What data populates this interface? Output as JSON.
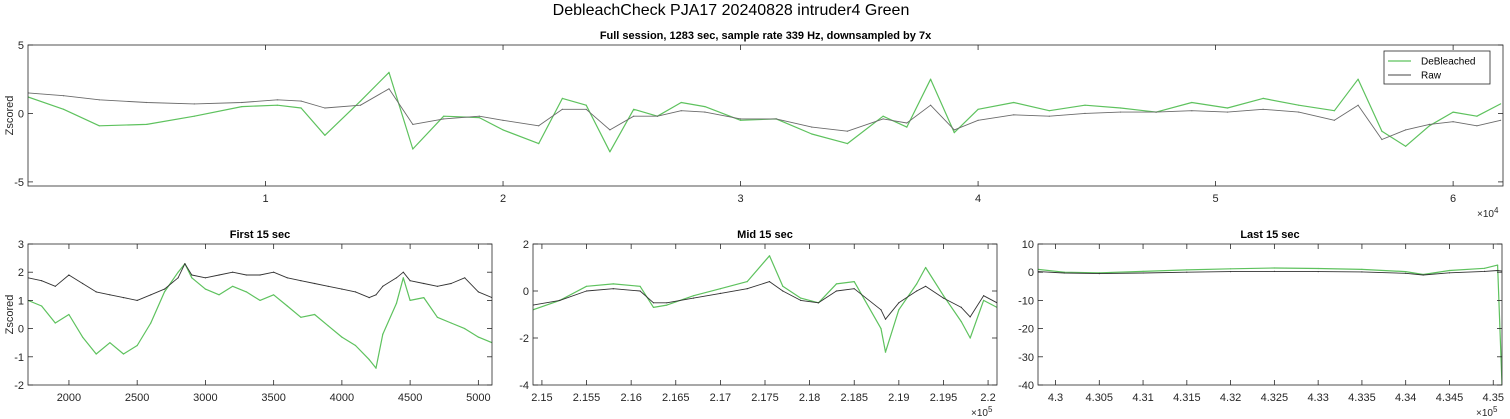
{
  "figure_title": "DebleachCheck PJA17 20240828  intruder4 Green",
  "chart_data": [
    {
      "type": "line",
      "title": "Full session, 1283 sec, sample rate 339 Hz, downsampled by 7x",
      "xlabel": "",
      "ylabel": "Zscored",
      "xlim": [
        0,
        62100
      ],
      "ylim": [
        -5.3,
        5
      ],
      "xticks": [
        10000,
        20000,
        30000,
        40000,
        50000,
        60000
      ],
      "xtick_labels": [
        "1",
        "2",
        "3",
        "4",
        "5",
        "6"
      ],
      "x_exponent": "4",
      "yticks": [
        -5,
        0,
        5
      ],
      "ytick_labels": [
        "-5",
        "0",
        "5"
      ],
      "legend": {
        "placement": "top-right",
        "entries": [
          "DeBleached",
          "Raw"
        ]
      },
      "series": [
        {
          "name": "DeBleached",
          "color": "#5ec25e",
          "x": [
            0,
            1500,
            3000,
            5000,
            7000,
            9000,
            10500,
            11500,
            12500,
            14000,
            15200,
            16200,
            17500,
            19000,
            20000,
            21500,
            22500,
            23500,
            24500,
            25500,
            26500,
            27500,
            28500,
            30000,
            31500,
            33000,
            34500,
            36000,
            37000,
            38000,
            39000,
            40000,
            41500,
            43000,
            44500,
            46000,
            47500,
            49000,
            50500,
            52000,
            53500,
            55000,
            56000,
            57000,
            58000,
            59000,
            60000,
            61000,
            62000
          ],
          "y": [
            1.2,
            0.3,
            -0.9,
            -0.8,
            -0.2,
            0.5,
            0.6,
            0.4,
            -1.6,
            0.9,
            3.0,
            -2.6,
            -0.2,
            -0.3,
            -1.2,
            -2.2,
            1.1,
            0.6,
            -2.8,
            0.3,
            -0.2,
            0.8,
            0.5,
            -0.5,
            -0.4,
            -1.5,
            -2.2,
            -0.2,
            -1.0,
            2.5,
            -1.4,
            0.3,
            0.8,
            0.2,
            0.6,
            0.4,
            0.1,
            0.8,
            0.4,
            1.1,
            0.6,
            0.2,
            2.5,
            -1.3,
            -2.4,
            -0.9,
            0.1,
            -0.2,
            0.7
          ]
        },
        {
          "name": "Raw",
          "color": "#6b6b6b",
          "x": [
            0,
            1500,
            3000,
            5000,
            7000,
            9000,
            10500,
            11500,
            12500,
            14000,
            15200,
            16200,
            17500,
            19000,
            20000,
            21500,
            22500,
            23500,
            24500,
            25500,
            26500,
            27500,
            28500,
            30000,
            31500,
            33000,
            34500,
            36000,
            37000,
            38000,
            39000,
            40000,
            41500,
            43000,
            44500,
            46000,
            47500,
            49000,
            50500,
            52000,
            53500,
            55000,
            56000,
            57000,
            58000,
            59000,
            60000,
            61000,
            62000
          ],
          "y": [
            1.5,
            1.3,
            1.0,
            0.8,
            0.7,
            0.8,
            1.0,
            0.9,
            0.4,
            0.6,
            1.8,
            -0.8,
            -0.4,
            -0.2,
            -0.5,
            -0.9,
            0.3,
            0.3,
            -1.2,
            -0.2,
            -0.2,
            0.2,
            0.1,
            -0.4,
            -0.4,
            -1.0,
            -1.3,
            -0.4,
            -0.7,
            0.6,
            -1.2,
            -0.5,
            -0.1,
            -0.2,
            0.0,
            0.1,
            0.1,
            0.2,
            0.1,
            0.3,
            0.1,
            -0.5,
            0.6,
            -1.9,
            -1.2,
            -0.8,
            -0.6,
            -0.9,
            -0.5
          ]
        }
      ]
    },
    {
      "type": "line",
      "title": "First 15 sec",
      "xlabel": "",
      "ylabel": "Zscored",
      "xlim": [
        1700,
        5100
      ],
      "ylim": [
        -2,
        3
      ],
      "xticks": [
        2000,
        2500,
        3000,
        3500,
        4000,
        4500,
        5000
      ],
      "xtick_labels": [
        "2000",
        "2500",
        "3000",
        "3500",
        "4000",
        "4500",
        "5000"
      ],
      "yticks": [
        -2,
        -1,
        0,
        1,
        2,
        3
      ],
      "ytick_labels": [
        "-2",
        "-1",
        "0",
        "1",
        "2",
        "3"
      ],
      "series": [
        {
          "name": "DeBleached",
          "color": "#5ec25e",
          "x": [
            1700,
            1800,
            1900,
            2000,
            2100,
            2200,
            2300,
            2400,
            2500,
            2600,
            2700,
            2800,
            2850,
            2900,
            3000,
            3100,
            3200,
            3300,
            3400,
            3500,
            3600,
            3700,
            3800,
            3900,
            4000,
            4100,
            4200,
            4250,
            4300,
            4400,
            4450,
            4500,
            4600,
            4700,
            4800,
            4900,
            5000,
            5100
          ],
          "y": [
            1.0,
            0.8,
            0.2,
            0.5,
            -0.3,
            -0.9,
            -0.5,
            -0.9,
            -0.6,
            0.2,
            1.3,
            2.0,
            2.3,
            1.8,
            1.4,
            1.2,
            1.5,
            1.3,
            1.0,
            1.2,
            0.8,
            0.4,
            0.5,
            0.1,
            -0.3,
            -0.6,
            -1.1,
            -1.4,
            -0.2,
            0.9,
            1.8,
            1.0,
            1.1,
            0.4,
            0.2,
            0.0,
            -0.3,
            -0.5
          ]
        },
        {
          "name": "Raw",
          "color": "#333333",
          "x": [
            1700,
            1800,
            1900,
            2000,
            2100,
            2200,
            2300,
            2400,
            2500,
            2600,
            2700,
            2800,
            2850,
            2900,
            3000,
            3100,
            3200,
            3300,
            3400,
            3500,
            3600,
            3700,
            3800,
            3900,
            4000,
            4100,
            4200,
            4250,
            4300,
            4400,
            4450,
            4500,
            4600,
            4700,
            4800,
            4900,
            5000,
            5100
          ],
          "y": [
            1.8,
            1.7,
            1.5,
            1.9,
            1.6,
            1.3,
            1.2,
            1.1,
            1.0,
            1.2,
            1.4,
            1.8,
            2.3,
            1.9,
            1.8,
            1.9,
            2.0,
            1.9,
            1.9,
            2.0,
            1.8,
            1.7,
            1.6,
            1.5,
            1.4,
            1.3,
            1.1,
            1.2,
            1.5,
            1.8,
            2.0,
            1.7,
            1.6,
            1.5,
            1.6,
            1.8,
            1.3,
            1.1
          ]
        }
      ]
    },
    {
      "type": "line",
      "title": "Mid 15 sec",
      "xlabel": "",
      "ylabel": "",
      "xlim": [
        214900,
        220100
      ],
      "ylim": [
        -4,
        2
      ],
      "xticks": [
        215000,
        215500,
        216000,
        216500,
        217000,
        217500,
        218000,
        218500,
        219000,
        219500,
        220000
      ],
      "xtick_labels": [
        "2.15",
        "2.155",
        "2.16",
        "2.165",
        "2.17",
        "2.175",
        "2.18",
        "2.185",
        "2.19",
        "2.195",
        "2.2"
      ],
      "x_exponent": "5",
      "yticks": [
        -4,
        -2,
        0,
        2
      ],
      "ytick_labels": [
        "-4",
        "-2",
        "0",
        "2"
      ],
      "series": [
        {
          "name": "DeBleached",
          "color": "#5ec25e",
          "x": [
            214900,
            215200,
            215500,
            215800,
            216100,
            216250,
            216400,
            216700,
            217000,
            217300,
            217550,
            217700,
            217900,
            218100,
            218300,
            218500,
            218800,
            218850,
            219000,
            219200,
            219300,
            219500,
            219700,
            219800,
            219950,
            220100
          ],
          "y": [
            -0.8,
            -0.4,
            0.2,
            0.3,
            0.2,
            -0.7,
            -0.6,
            -0.2,
            0.1,
            0.4,
            1.5,
            0.2,
            -0.3,
            -0.5,
            0.3,
            0.4,
            -1.6,
            -2.6,
            -0.8,
            0.3,
            1.0,
            -0.2,
            -1.3,
            -2.0,
            -0.4,
            -0.7
          ]
        },
        {
          "name": "Raw",
          "color": "#333333",
          "x": [
            214900,
            215200,
            215500,
            215800,
            216100,
            216250,
            216400,
            216700,
            217000,
            217300,
            217550,
            217700,
            217900,
            218100,
            218300,
            218500,
            218800,
            218850,
            219000,
            219200,
            219300,
            219500,
            219700,
            219800,
            219950,
            220100
          ],
          "y": [
            -0.6,
            -0.4,
            0.0,
            0.1,
            0.0,
            -0.5,
            -0.5,
            -0.3,
            -0.1,
            0.1,
            0.4,
            0.0,
            -0.4,
            -0.5,
            0.0,
            0.1,
            -0.8,
            -1.2,
            -0.5,
            0.0,
            0.2,
            -0.3,
            -0.7,
            -1.1,
            -0.2,
            -0.5
          ]
        }
      ]
    },
    {
      "type": "line",
      "title": "Last 15 sec",
      "xlabel": "",
      "ylabel": "",
      "xlim": [
        429800,
        435100
      ],
      "ylim": [
        -40,
        10
      ],
      "xticks": [
        430000,
        430500,
        431000,
        431500,
        432000,
        432500,
        433000,
        433500,
        434000,
        434500,
        435000
      ],
      "xtick_labels": [
        "4.3",
        "4.305",
        "4.31",
        "4.315",
        "4.32",
        "4.325",
        "4.33",
        "4.335",
        "4.34",
        "4.345",
        "4.35"
      ],
      "x_exponent": "5",
      "yticks": [
        -40,
        -30,
        -20,
        -10,
        0,
        10
      ],
      "ytick_labels": [
        "-40",
        "-30",
        "-20",
        "-10",
        "0",
        "10"
      ],
      "series": [
        {
          "name": "DeBleached",
          "color": "#5ec25e",
          "x": [
            429800,
            430100,
            430500,
            431000,
            431500,
            432000,
            432500,
            433000,
            433500,
            434000,
            434200,
            434500,
            434900,
            435050,
            435100
          ],
          "y": [
            1.0,
            0.0,
            -0.2,
            0.3,
            0.8,
            1.2,
            1.5,
            1.3,
            1.0,
            0.2,
            -0.8,
            0.6,
            1.4,
            2.5,
            -40
          ]
        },
        {
          "name": "Raw",
          "color": "#333333",
          "x": [
            429800,
            430100,
            430500,
            431000,
            431500,
            432000,
            432500,
            433000,
            433500,
            434000,
            434200,
            434500,
            434900,
            435050,
            435100
          ],
          "y": [
            0.2,
            -0.3,
            -0.5,
            -0.3,
            0.0,
            0.2,
            0.3,
            0.2,
            0.1,
            -0.4,
            -1.0,
            -0.2,
            0.3,
            0.6,
            0.4
          ]
        }
      ]
    }
  ]
}
